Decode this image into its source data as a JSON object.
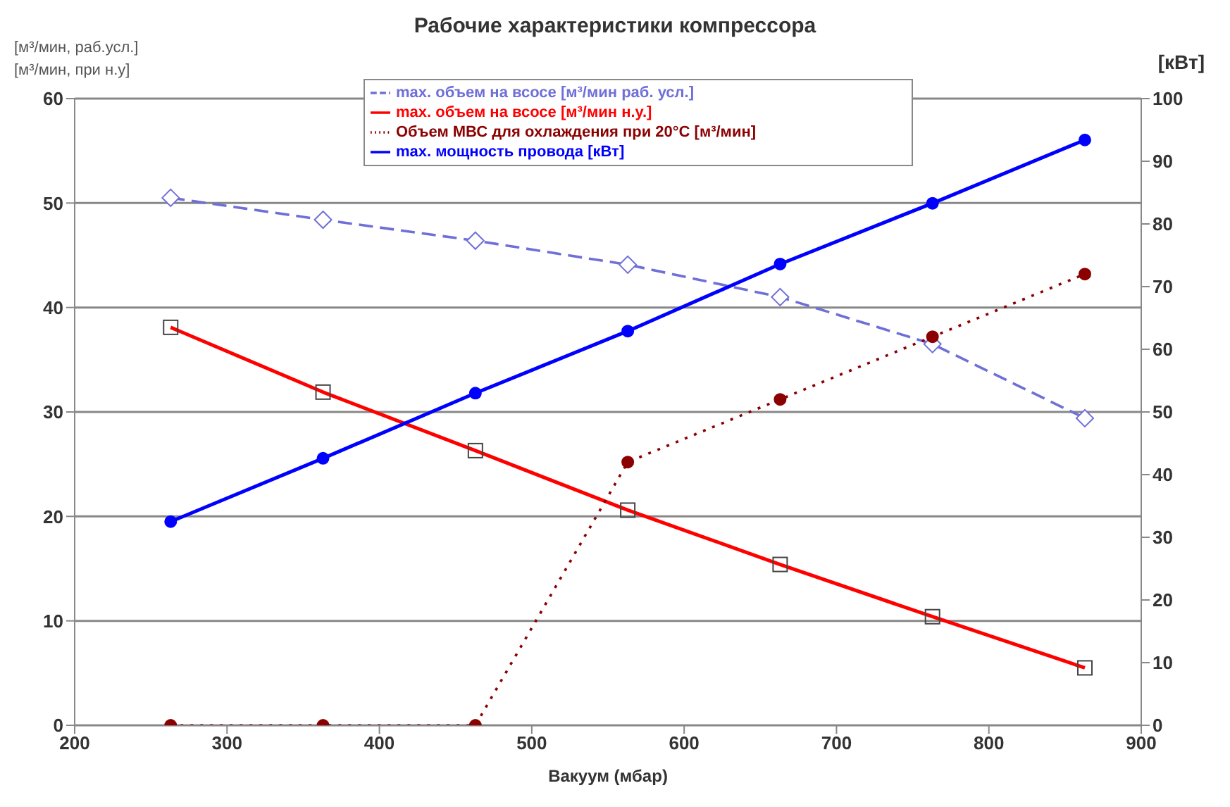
{
  "chart_data": {
    "type": "line",
    "title": "Рабочие характеристики компрессора",
    "xlabel": "Вакуум (мбар)",
    "ylabel": "[м³/мин, раб.усл.]\n[м³/мин, при н.у]",
    "y2label": "[кВт]",
    "x": [
      263,
      363,
      463,
      563,
      663,
      763,
      863
    ],
    "xlim": [
      200,
      900
    ],
    "xticks": [
      200,
      300,
      400,
      500,
      600,
      700,
      800,
      900
    ],
    "ylim": [
      0,
      60
    ],
    "yticks": [
      0,
      10,
      20,
      30,
      40,
      50,
      60
    ],
    "y2lim": [
      0,
      100
    ],
    "y2ticks": [
      0,
      10,
      20,
      30,
      40,
      50,
      60,
      70,
      80,
      90,
      100
    ],
    "grid": "y",
    "legend": "top",
    "series": [
      {
        "name": "max. объем на всосе [м³/мин раб. усл.]",
        "color": "#6f6fd8",
        "marker": "diamond",
        "line_style": "dashed",
        "values": [
          50.5,
          48.4,
          46.4,
          44.1,
          41.0,
          36.5,
          29.4
        ]
      },
      {
        "name": "max. объем на всосе [м³/мин н.у.]",
        "color": "#ff0000",
        "marker": "square",
        "line_style": "solid",
        "values": [
          38.1,
          31.9,
          26.3,
          20.6,
          15.4,
          10.4,
          5.5
        ]
      },
      {
        "name": "Объем МВС для охлаждения при 20°C [м³/мин]",
        "color": "#8b0000",
        "marker": "circle",
        "line_style": "dotted",
        "axis": "y2",
        "values": [
          0,
          0,
          0,
          42,
          52,
          62,
          72
        ]
      },
      {
        "name": "max. мощность провода [кВт]",
        "color": "#0000ff",
        "marker": "circle",
        "line_style": "solid",
        "axis": "y2",
        "values": [
          32.5,
          42.6,
          53,
          62.9,
          73.6,
          83.3,
          93.4
        ]
      }
    ]
  }
}
